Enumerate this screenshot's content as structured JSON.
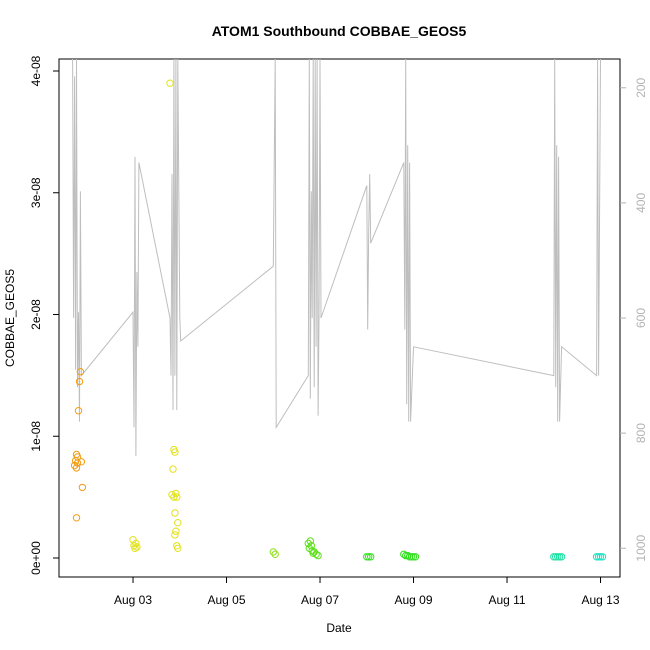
{
  "chart_data": {
    "type": "scatter",
    "title": "ATOM1 Southbound COBBAE_GEOS5",
    "xlabel": "Date",
    "ylabel": "COBBAE_GEOS5",
    "xlim": [
      "2016-08-01T10:00",
      "2016-08-13T10:00"
    ],
    "ylim": [
      0,
      4e-08
    ],
    "y2lim": [
      1050,
      150
    ],
    "x_ticks": [
      {
        "x": "2016-08-03",
        "label": "Aug 03"
      },
      {
        "x": "2016-08-05",
        "label": "Aug 05"
      },
      {
        "x": "2016-08-07",
        "label": "Aug 07"
      },
      {
        "x": "2016-08-09",
        "label": "Aug 09"
      },
      {
        "x": "2016-08-11",
        "label": "Aug 11"
      },
      {
        "x": "2016-08-13",
        "label": "Aug 13"
      }
    ],
    "y_ticks": [
      {
        "y": 0,
        "label": "0e+00"
      },
      {
        "y": 1e-08,
        "label": "1e-08"
      },
      {
        "y": 2e-08,
        "label": "2e-08"
      },
      {
        "y": 3e-08,
        "label": "3e-08"
      },
      {
        "y": 4e-08,
        "label": "4e-08"
      }
    ],
    "y2_ticks": [
      {
        "y": 200,
        "label": "200"
      },
      {
        "y": 400,
        "label": "400"
      },
      {
        "y": 600,
        "label": "600"
      },
      {
        "y": 800,
        "label": "800"
      },
      {
        "y": 1000,
        "label": "1000"
      }
    ],
    "series": [
      {
        "color": "#f39c12",
        "points": [
          {
            "x": "2016-08-01T18:00",
            "y": 7.6e-09
          },
          {
            "x": "2016-08-01T18:30",
            "y": 8e-09
          },
          {
            "x": "2016-08-01T19:00",
            "y": 8.5e-09
          },
          {
            "x": "2016-08-01T19:00",
            "y": 7.4e-09
          },
          {
            "x": "2016-08-01T19:30",
            "y": 8.3e-09
          },
          {
            "x": "2016-08-01T19:30",
            "y": 7.8e-09
          },
          {
            "x": "2016-08-01T19:00",
            "y": 3.3e-09
          },
          {
            "x": "2016-08-01T20:00",
            "y": 1.21e-08
          },
          {
            "x": "2016-08-01T20:30",
            "y": 1.45e-08
          },
          {
            "x": "2016-08-01T21:00",
            "y": 1.53e-08
          },
          {
            "x": "2016-08-01T21:30",
            "y": 7.9e-09
          },
          {
            "x": "2016-08-01T22:00",
            "y": 5.8e-09
          }
        ]
      },
      {
        "color": "#e2e21a",
        "points": [
          {
            "x": "2016-08-03T00:00",
            "y": 1.5e-09
          },
          {
            "x": "2016-08-03T00:30",
            "y": 1e-09
          },
          {
            "x": "2016-08-03T01:00",
            "y": 8e-10
          },
          {
            "x": "2016-08-03T01:30",
            "y": 1.2e-09
          },
          {
            "x": "2016-08-03T02:00",
            "y": 9e-10
          },
          {
            "x": "2016-08-03T19:00",
            "y": 3.9e-08
          },
          {
            "x": "2016-08-03T20:00",
            "y": 5.2e-09
          },
          {
            "x": "2016-08-03T20:30",
            "y": 7.3e-09
          },
          {
            "x": "2016-08-03T21:00",
            "y": 8.9e-09
          },
          {
            "x": "2016-08-03T21:30",
            "y": 8.7e-09
          },
          {
            "x": "2016-08-03T21:00",
            "y": 5e-09
          },
          {
            "x": "2016-08-03T22:00",
            "y": 5.3e-09
          },
          {
            "x": "2016-08-03T22:30",
            "y": 5e-09
          },
          {
            "x": "2016-08-03T21:30",
            "y": 3.7e-09
          },
          {
            "x": "2016-08-03T23:00",
            "y": 2.9e-09
          },
          {
            "x": "2016-08-03T22:00",
            "y": 2.2e-09
          },
          {
            "x": "2016-08-03T21:30",
            "y": 1.9e-09
          },
          {
            "x": "2016-08-03T22:30",
            "y": 1e-09
          },
          {
            "x": "2016-08-03T23:00",
            "y": 8e-10
          }
        ]
      },
      {
        "color": "#8ee01a",
        "points": [
          {
            "x": "2016-08-06T00:00",
            "y": 5e-10
          },
          {
            "x": "2016-08-06T01:00",
            "y": 3e-10
          }
        ]
      },
      {
        "color": "#5ee01a",
        "points": [
          {
            "x": "2016-08-06T18:00",
            "y": 1.2e-09
          },
          {
            "x": "2016-08-06T18:30",
            "y": 8e-10
          },
          {
            "x": "2016-08-06T19:00",
            "y": 1.4e-09
          },
          {
            "x": "2016-08-06T19:30",
            "y": 1e-09
          },
          {
            "x": "2016-08-06T20:00",
            "y": 6e-10
          },
          {
            "x": "2016-08-06T20:30",
            "y": 4e-10
          },
          {
            "x": "2016-08-06T21:00",
            "y": 5e-10
          },
          {
            "x": "2016-08-06T22:00",
            "y": 3e-10
          },
          {
            "x": "2016-08-06T23:00",
            "y": 2e-10
          }
        ]
      },
      {
        "color": "#2ee01a",
        "points": [
          {
            "x": "2016-08-08T00:00",
            "y": 1e-10
          },
          {
            "x": "2016-08-08T01:00",
            "y": 1e-10
          },
          {
            "x": "2016-08-08T02:00",
            "y": 1e-10
          },
          {
            "x": "2016-08-08T19:00",
            "y": 3e-10
          },
          {
            "x": "2016-08-08T20:00",
            "y": 2e-10
          },
          {
            "x": "2016-08-08T21:00",
            "y": 2e-10
          },
          {
            "x": "2016-08-08T22:00",
            "y": 1e-10
          },
          {
            "x": "2016-08-08T23:00",
            "y": 1e-10
          },
          {
            "x": "2016-08-09T00:00",
            "y": 1e-10
          },
          {
            "x": "2016-08-09T01:00",
            "y": 1e-10
          }
        ]
      },
      {
        "color": "#1ae0a0",
        "points": [
          {
            "x": "2016-08-12T00:00",
            "y": 1e-10
          },
          {
            "x": "2016-08-12T01:00",
            "y": 1e-10
          },
          {
            "x": "2016-08-12T02:00",
            "y": 1e-10
          },
          {
            "x": "2016-08-12T03:00",
            "y": 1e-10
          },
          {
            "x": "2016-08-12T04:00",
            "y": 1e-10
          }
        ]
      },
      {
        "color": "#1ae0c0",
        "points": [
          {
            "x": "2016-08-12T22:00",
            "y": 1e-10
          },
          {
            "x": "2016-08-12T23:00",
            "y": 1e-10
          },
          {
            "x": "2016-08-13T00:00",
            "y": 1e-10
          },
          {
            "x": "2016-08-13T01:00",
            "y": 1e-10
          }
        ]
      }
    ],
    "pressure_line": {
      "color": "#bebebe",
      "axis": "right",
      "points": [
        [
          "2016-08-01T17:00",
          150
        ],
        [
          "2016-08-01T17:30",
          600
        ],
        [
          "2016-08-01T18:00",
          180
        ],
        [
          "2016-08-01T18:30",
          690
        ],
        [
          "2016-08-01T19:00",
          150
        ],
        [
          "2016-08-01T19:30",
          720
        ],
        [
          "2016-08-01T20:00",
          590
        ],
        [
          "2016-08-01T20:30",
          780
        ],
        [
          "2016-08-01T21:00",
          380
        ],
        [
          "2016-08-01T21:30",
          700
        ],
        [
          "2016-08-03T00:00",
          590
        ],
        [
          "2016-08-03T00:30",
          790
        ],
        [
          "2016-08-03T01:00",
          320
        ],
        [
          "2016-08-03T01:30",
          840
        ],
        [
          "2016-08-03T02:00",
          520
        ],
        [
          "2016-08-03T02:30",
          650
        ],
        [
          "2016-08-03T03:00",
          330
        ],
        [
          "2016-08-03T19:00",
          600
        ],
        [
          "2016-08-03T19:30",
          700
        ],
        [
          "2016-08-03T20:00",
          350
        ],
        [
          "2016-08-03T20:30",
          760
        ],
        [
          "2016-08-03T21:00",
          150
        ],
        [
          "2016-08-03T21:30",
          700
        ],
        [
          "2016-08-03T22:00",
          150
        ],
        [
          "2016-08-03T22:30",
          760
        ],
        [
          "2016-08-03T23:00",
          150
        ],
        [
          "2016-08-04T00:00",
          600
        ],
        [
          "2016-08-04T00:30",
          640
        ],
        [
          "2016-08-06T00:00",
          510
        ],
        [
          "2016-08-06T01:00",
          150
        ],
        [
          "2016-08-06T01:30",
          790
        ],
        [
          "2016-08-06T18:00",
          700
        ],
        [
          "2016-08-06T18:30",
          150
        ],
        [
          "2016-08-06T19:00",
          740
        ],
        [
          "2016-08-06T19:30",
          380
        ],
        [
          "2016-08-06T20:00",
          600
        ],
        [
          "2016-08-06T20:30",
          150
        ],
        [
          "2016-08-06T21:00",
          720
        ],
        [
          "2016-08-06T21:30",
          150
        ],
        [
          "2016-08-06T22:00",
          650
        ],
        [
          "2016-08-06T22:30",
          150
        ],
        [
          "2016-08-06T23:00",
          770
        ],
        [
          "2016-08-06T23:30",
          600
        ],
        [
          "2016-08-07T00:00",
          150
        ],
        [
          "2016-08-07T00:30",
          600
        ],
        [
          "2016-08-08T00:00",
          370
        ],
        [
          "2016-08-08T00:30",
          620
        ],
        [
          "2016-08-08T01:00",
          450
        ],
        [
          "2016-08-08T01:30",
          350
        ],
        [
          "2016-08-08T02:00",
          470
        ],
        [
          "2016-08-08T19:00",
          330
        ],
        [
          "2016-08-08T19:30",
          620
        ],
        [
          "2016-08-08T20:00",
          150
        ],
        [
          "2016-08-08T20:30",
          750
        ],
        [
          "2016-08-08T21:00",
          300
        ],
        [
          "2016-08-08T21:30",
          780
        ],
        [
          "2016-08-08T22:00",
          330
        ],
        [
          "2016-08-08T22:30",
          780
        ],
        [
          "2016-08-09T00:00",
          650
        ],
        [
          "2016-08-12T00:00",
          700
        ],
        [
          "2016-08-12T00:30",
          150
        ],
        [
          "2016-08-12T01:00",
          720
        ],
        [
          "2016-08-12T01:30",
          300
        ],
        [
          "2016-08-12T02:00",
          780
        ],
        [
          "2016-08-12T02:30",
          320
        ],
        [
          "2016-08-12T03:00",
          780
        ],
        [
          "2016-08-12T04:00",
          650
        ],
        [
          "2016-08-12T22:00",
          700
        ],
        [
          "2016-08-12T22:30",
          150
        ],
        [
          "2016-08-12T23:00",
          700
        ],
        [
          "2016-08-13T00:00",
          150
        ]
      ]
    },
    "grid": false,
    "legend": "none"
  }
}
